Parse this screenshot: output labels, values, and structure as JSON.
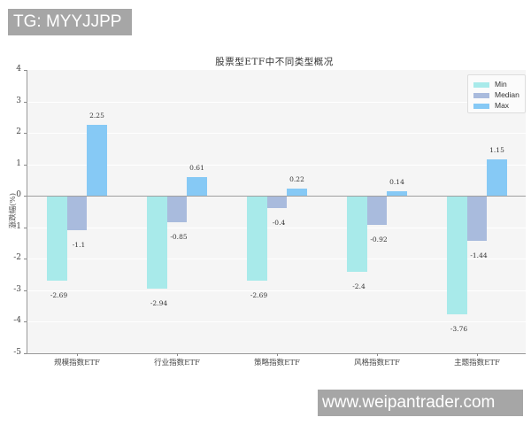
{
  "watermarks": {
    "top": "TG: MYYJJPP",
    "bottom": "www.weipantrader.com"
  },
  "chart_data": {
    "type": "bar",
    "title": "股票型ETF中不同类型概况",
    "xlabel": "",
    "ylabel": "涨跌幅(%)",
    "ylim": [
      -5,
      4
    ],
    "yticks": [
      4,
      3,
      2,
      1,
      0,
      -1,
      -2,
      -3,
      -4,
      -5
    ],
    "grid": true,
    "legend_position": "upper right",
    "categories": [
      "规模指数ETF",
      "行业指数ETF",
      "策略指数ETF",
      "风格指数ETF",
      "主题指数ETF"
    ],
    "series": [
      {
        "name": "Min",
        "color": "#a8eaea",
        "values": [
          -2.69,
          -2.94,
          -2.69,
          -2.4,
          -3.76
        ]
      },
      {
        "name": "Median",
        "color": "#a9bbdd",
        "values": [
          -1.1,
          -0.85,
          -0.4,
          -0.92,
          -1.44
        ]
      },
      {
        "name": "Max",
        "color": "#86c9f5",
        "values": [
          2.25,
          0.61,
          0.22,
          0.14,
          1.15
        ]
      }
    ]
  }
}
